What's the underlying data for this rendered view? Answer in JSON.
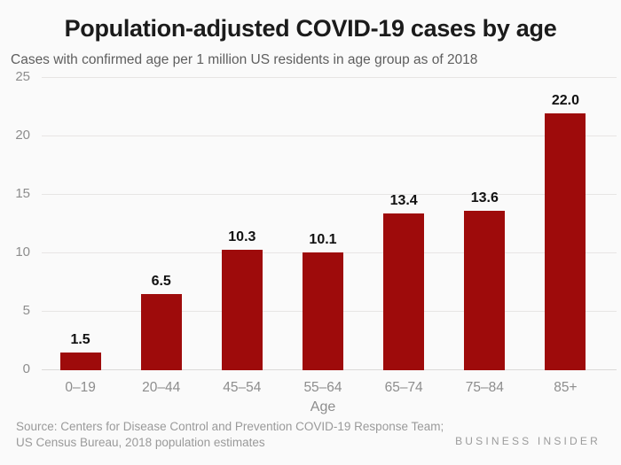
{
  "chart_data": {
    "type": "bar",
    "title": "Population-adjusted COVID-19 cases by age",
    "subtitle": "Cases with confirmed age per 1 million US residents in age group as of 2018",
    "categories": [
      "0–19",
      "20–44",
      "45–54",
      "55–64",
      "65–74",
      "75–84",
      "85+"
    ],
    "values": [
      1.5,
      6.5,
      10.3,
      10.1,
      13.4,
      13.6,
      22.0
    ],
    "value_labels": [
      "1.5",
      "6.5",
      "10.3",
      "10.1",
      "13.4",
      "13.6",
      "22.0"
    ],
    "xlabel": "Age",
    "ylabel": "",
    "ylim": [
      0,
      25
    ],
    "yticks": [
      0,
      5,
      10,
      15,
      20,
      25
    ],
    "ytick_labels": [
      "0",
      "5",
      "10",
      "15",
      "20",
      "25"
    ],
    "grid": true,
    "legend": "none",
    "bar_color": "#9e0b0b"
  },
  "footer": {
    "source_line1": "Source: Centers for Disease Control and Prevention COVID-19 Response Team;",
    "source_line2": "US Census Bureau, 2018 population estimates",
    "brand": "BUSINESS INSIDER"
  },
  "colors": {
    "background": "#fafafa",
    "bar": "#9e0b0b",
    "title_text": "#1b1b1b",
    "subtitle_text": "#5e5e5e",
    "axis_text": "#8d8d8d",
    "value_label_text": "#111111",
    "gridline": "#e7e5e4",
    "source_text": "#9a9a9a",
    "brand_text": "#9b9b9b"
  }
}
